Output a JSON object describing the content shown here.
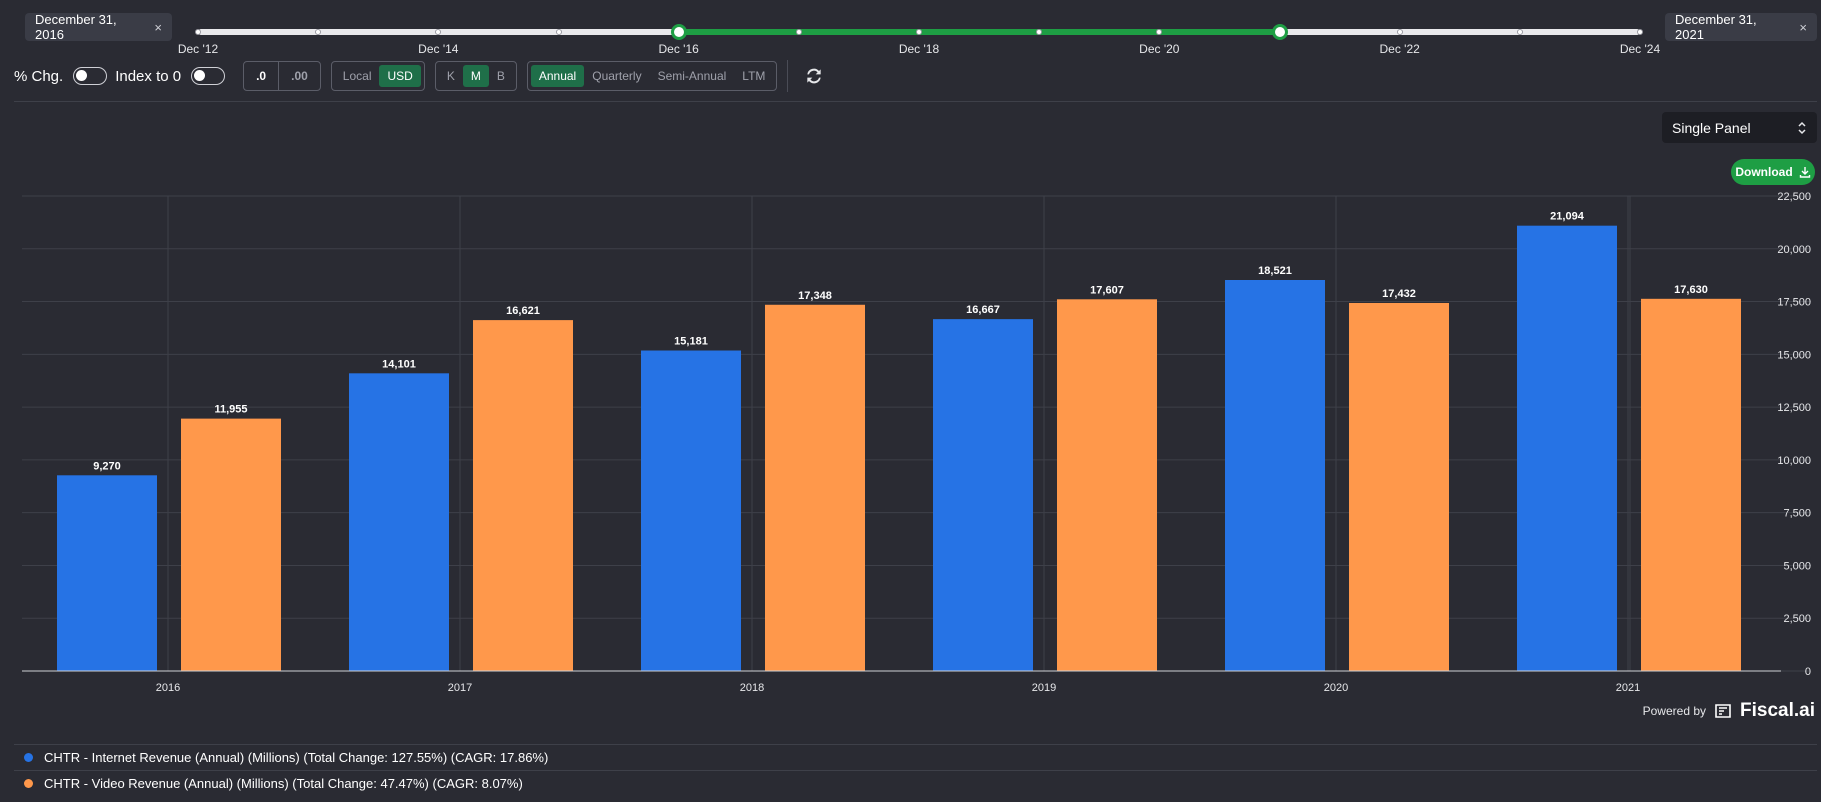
{
  "date_range": {
    "start": "December 31, 2016",
    "end": "December 31, 2021",
    "close_glyph": "×",
    "tick_labels": [
      "Dec '12",
      "Dec '14",
      "Dec '16",
      "Dec '18",
      "Dec '20",
      "Dec '22",
      "Dec '24"
    ]
  },
  "toolbar": {
    "pct_change_label": "% Chg.",
    "index_label": "Index to 0",
    "decimals": [
      ".0",
      ".00"
    ],
    "currency": [
      "Local",
      "USD"
    ],
    "currency_selected": "USD",
    "units": [
      "K",
      "M",
      "B"
    ],
    "units_selected": "M",
    "periods": [
      "Annual",
      "Quarterly",
      "Semi-Annual",
      "LTM"
    ],
    "period_selected": "Annual"
  },
  "panel_select": {
    "value": "Single Panel"
  },
  "download_label": "Download",
  "powered": {
    "label": "Powered by",
    "brand": "Fiscal.ai"
  },
  "colors": {
    "internet": "#2673e5",
    "video": "#ff984b",
    "accent": "#1e9e44"
  },
  "chart_data": {
    "type": "bar",
    "categories": [
      "2016",
      "2017",
      "2018",
      "2019",
      "2020",
      "2021"
    ],
    "series": [
      {
        "name": "CHTR - Internet Revenue (Annual) (Millions) (Total Change: 127.55%) (CAGR: 17.86%)",
        "values": [
          9270,
          14101,
          15181,
          16667,
          18521,
          21094
        ],
        "labels": [
          "9,270",
          "14,101",
          "15,181",
          "16,667",
          "18,521",
          "21,094"
        ]
      },
      {
        "name": "CHTR - Video Revenue (Annual) (Millions) (Total Change: 47.47%) (CAGR: 8.07%)",
        "values": [
          11955,
          16621,
          17348,
          17607,
          17432,
          17630
        ],
        "labels": [
          "11,955",
          "16,621",
          "17,348",
          "17,607",
          "17,432",
          "17,630"
        ]
      }
    ],
    "ylim": [
      0,
      22500
    ],
    "yticks": [
      "0",
      "2,500",
      "5,000",
      "7,500",
      "10,000",
      "12,500",
      "15,000",
      "17,500",
      "20,000",
      "22,500"
    ],
    "grid": true,
    "legend": "bottom"
  }
}
